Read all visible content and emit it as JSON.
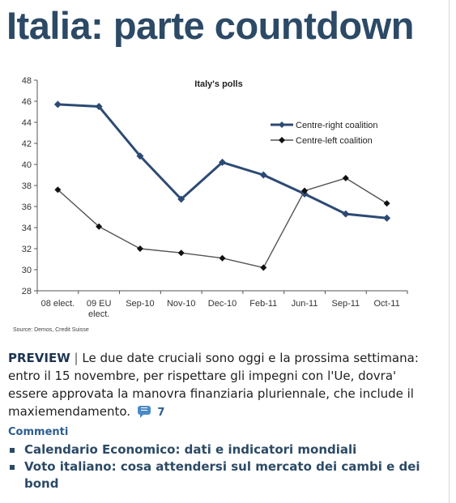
{
  "headline": "Italia: parte countdown",
  "chart_data": {
    "type": "line",
    "title": "Italy's polls",
    "categories": [
      "08 elect.",
      "09 EU elect.",
      "Sep-10",
      "Nov-10",
      "Dec-10",
      "Feb-11",
      "Jun-11",
      "Sep-11",
      "Oct-11"
    ],
    "category_lines": [
      [
        "08 elect."
      ],
      [
        "09 EU",
        "elect."
      ],
      [
        "Sep-10"
      ],
      [
        "Nov-10"
      ],
      [
        "Dec-10"
      ],
      [
        "Feb-11"
      ],
      [
        "Jun-11"
      ],
      [
        "Sep-11"
      ],
      [
        "Oct-11"
      ]
    ],
    "y_ticks": [
      28,
      30,
      32,
      34,
      36,
      38,
      40,
      42,
      44,
      46,
      48
    ],
    "ylim": [
      28,
      48
    ],
    "xlabel": "",
    "ylabel": "",
    "grid": false,
    "legend_position": "top-right",
    "series": [
      {
        "name": "Centre-right coalition",
        "color": "#2c4a73",
        "marker": "diamond",
        "values": [
          45.7,
          45.5,
          40.8,
          36.7,
          40.2,
          39.0,
          37.2,
          35.3,
          34.9
        ]
      },
      {
        "name": "Centre-left coalition",
        "color": "#555555",
        "marker": "diamond",
        "values": [
          37.6,
          34.1,
          32.0,
          31.6,
          31.1,
          30.2,
          37.5,
          38.7,
          36.3
        ]
      }
    ]
  },
  "source_note": "Source: Demos, Credit Suisse",
  "preview": {
    "tag": "PREVIEW",
    "separator": " | ",
    "body": "Le due date cruciali sono oggi e la prossima settimana: entro il 15 novembre, per rispettare gli impegni con l'Ue, dovra' essere approvata la manovra finanziaria pluriennale, che include il maxiemendamento.",
    "comments_count": "7",
    "comments_label": "Commenti",
    "comment_icon": "comment-bubble-icon",
    "accent_color": "#4a8ac7"
  },
  "related_links": [
    {
      "label": "Calendario Economico: dati e indicatori mondiali"
    },
    {
      "label": "Voto italiano: cosa attendersi sul mercato dei cambi e dei bond"
    }
  ],
  "colors": {
    "headline": "#2c4a66",
    "link": "#2c4a66"
  }
}
